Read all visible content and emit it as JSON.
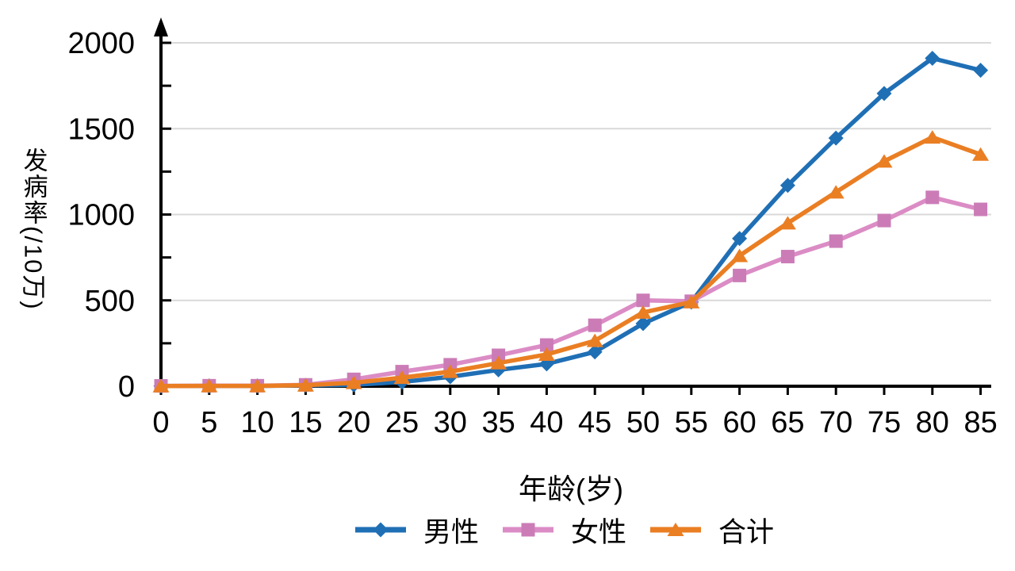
{
  "chart_data": {
    "type": "line",
    "title": "",
    "xlabel": "年龄(岁)",
    "ylabel": "发病率(/10万)",
    "ylabel_upright_part": "发病率",
    "ylabel_rotated_part": "(/10万)",
    "x": [
      0,
      5,
      10,
      15,
      20,
      25,
      30,
      35,
      40,
      45,
      50,
      55,
      60,
      65,
      70,
      75,
      80,
      85
    ],
    "x_tick_labels": [
      "0",
      "5",
      "10",
      "15",
      "20",
      "25",
      "30",
      "35",
      "40",
      "45",
      "50",
      "55",
      "60",
      "65",
      "70",
      "75",
      "80",
      "85"
    ],
    "y_ticks": [
      0,
      500,
      1000,
      1500,
      2000
    ],
    "y_tick_labels": [
      "0",
      "500",
      "1000",
      "1500",
      "2000"
    ],
    "y_minor_tick_step": 250,
    "ylim": [
      0,
      2000
    ],
    "xlim": [
      0,
      85
    ],
    "grid": "horizontal-major-only",
    "legend_position": "bottom-center",
    "background_color": "#ffffff",
    "axis_color": "#000000",
    "gridline_color": "#d9d9d9",
    "series": [
      {
        "key": "male",
        "name": "男性",
        "marker": "diamond",
        "color": "#1f6fb5",
        "values": [
          1,
          2,
          2,
          5,
          8,
          25,
          55,
          95,
          130,
          200,
          365,
          490,
          860,
          1170,
          1445,
          1705,
          1910,
          1840
        ]
      },
      {
        "key": "female",
        "name": "女性",
        "marker": "square",
        "color": "#cb7cb7",
        "line_color": "#db8cc5",
        "values": [
          2,
          3,
          3,
          8,
          40,
          85,
          125,
          180,
          240,
          355,
          500,
          495,
          645,
          755,
          845,
          965,
          1100,
          1030
        ]
      },
      {
        "key": "total",
        "name": "合计",
        "marker": "triangle",
        "color": "#ea7e23",
        "values": [
          1,
          2,
          2,
          6,
          20,
          50,
          85,
          135,
          185,
          265,
          430,
          490,
          760,
          950,
          1130,
          1310,
          1450,
          1350
        ]
      }
    ]
  }
}
